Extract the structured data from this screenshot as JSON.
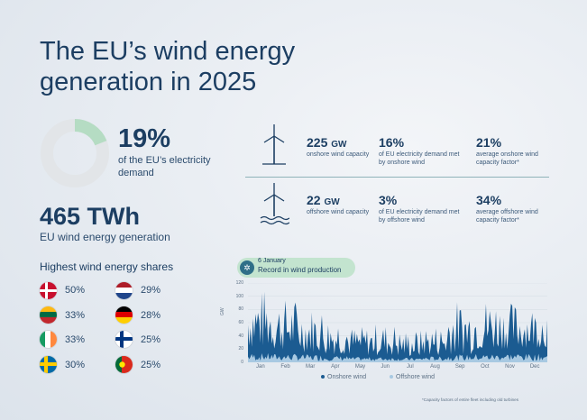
{
  "title": "The EU’s wind energy generation in 2025",
  "share_headline": {
    "value": "19%",
    "fraction": 0.19,
    "description": "of the EU’s electricity demand"
  },
  "generation": {
    "value": "465 TWh",
    "description": "EU wind energy generation"
  },
  "highest_shares": {
    "title": "Highest wind energy shares",
    "items": [
      {
        "value": "50%",
        "flag": "denmark-flag"
      },
      {
        "value": "29%",
        "flag": "netherlands-flag"
      },
      {
        "value": "33%",
        "flag": "lithuania-flag"
      },
      {
        "value": "28%",
        "flag": "germany-flag"
      },
      {
        "value": "33%",
        "flag": "ireland-flag"
      },
      {
        "value": "25%",
        "flag": "finland-flag"
      },
      {
        "value": "30%",
        "flag": "sweden-flag"
      },
      {
        "value": "25%",
        "flag": "portugal-flag"
      }
    ]
  },
  "onshore": {
    "capacity": "225",
    "capacity_unit": "GW",
    "capacity_desc": "onshore wind capacity",
    "demand": "16%",
    "demand_desc": "of EU electricity demand met by onshore wind",
    "factor": "21%",
    "factor_desc": "average onshore wind capacity factor*"
  },
  "offshore": {
    "capacity": "22",
    "capacity_unit": "GW",
    "capacity_desc": "offshore wind capacity",
    "demand": "3%",
    "demand_desc": "of EU electricity demand met by offshore wind",
    "factor": "34%",
    "factor_desc": "average offshore wind capacity factor*"
  },
  "callout": {
    "date": "6 January",
    "text": "Record in wind production"
  },
  "chart_data": {
    "type": "area",
    "ylabel": "GW",
    "yticks": [
      "120",
      "100",
      "80",
      "60",
      "40",
      "20",
      "0"
    ],
    "ylim": [
      0,
      120
    ],
    "months": [
      "Jan",
      "Feb",
      "Mar",
      "Apr",
      "May",
      "Jun",
      "Jul",
      "Aug",
      "Sep",
      "Oct",
      "Nov",
      "Dec"
    ],
    "series": [
      {
        "name": "Onshore wind",
        "color": "#1b5b91",
        "monthly_peaks": [
          112,
          98,
          85,
          72,
          55,
          60,
          50,
          58,
          95,
          100,
          92,
          88
        ],
        "monthly_lows": [
          20,
          18,
          15,
          12,
          10,
          10,
          8,
          10,
          12,
          18,
          20,
          22
        ]
      },
      {
        "name": "Offshore wind",
        "color": "#a8c9e2",
        "monthly_peaks": [
          14,
          13,
          12,
          10,
          8,
          8,
          7,
          9,
          12,
          13,
          14,
          13
        ]
      }
    ]
  },
  "footnote": "*Capacity factors of entire fleet including old turbines"
}
